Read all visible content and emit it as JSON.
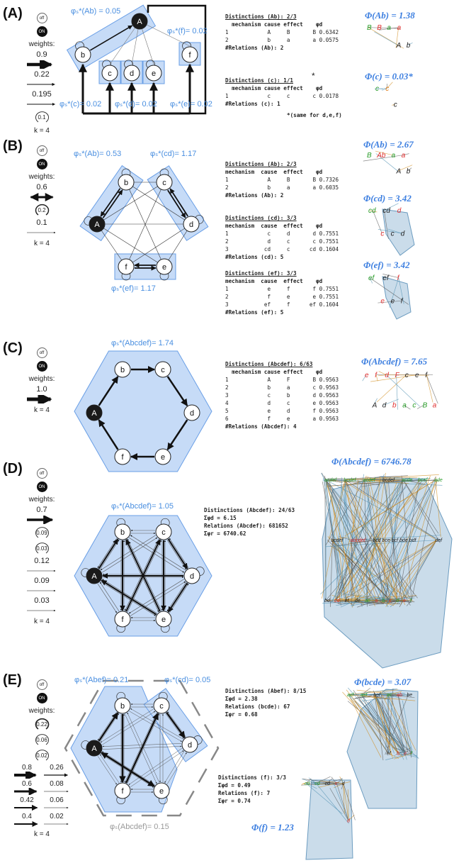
{
  "panels": [
    {
      "label": "(A)",
      "legend": {
        "off": "off",
        "on": "ON",
        "weights_label": "weights:",
        "items": [
          {
            "kind": "arrow",
            "labels": [
              "0.9"
            ]
          },
          {
            "kind": "arrow",
            "labels": [
              "0.22"
            ]
          },
          {
            "kind": "arrow",
            "labels": [
              "0.195"
            ]
          },
          {
            "kind": "loop",
            "labels": [
              "0.1"
            ]
          }
        ],
        "k": "k = 4"
      },
      "nodes": [
        "A",
        "b",
        "c",
        "d",
        "e",
        "f"
      ],
      "annotations": [
        "φₛ*(Ab) = 0.05",
        "φₛ*(f)= 0.02",
        "φₛ*(c)= 0.02",
        "φₛ*(d)= 0.02",
        "φₛ*(e)= 0.02"
      ],
      "tables": [
        {
          "title": "Distinctions (Ab): 2/3",
          "header": "  mechanism cause effect    φd",
          "rows": [
            [
              "1",
              "A",
              "B",
              "B",
              "0.6342"
            ],
            [
              "2",
              "b",
              "a",
              "a",
              "0.0575"
            ]
          ],
          "footer": "#Relations (Ab): 2"
        },
        {
          "title": "Distinctions (c): 1/1",
          "header": "  mechanism cause effect    φd",
          "rows": [
            [
              "1",
              "c",
              "c",
              "c",
              "0.0178"
            ]
          ],
          "footer": "#Relations (c): 1"
        }
      ],
      "star": "*",
      "note": "*(same for d,e,f)",
      "phi": [
        {
          "title": "Φ(Ab) = 1.38",
          "labels": [
            {
              "t": "B",
              "c": "#2a9d2a"
            },
            {
              "t": "B",
              "c": "#e03030"
            },
            {
              "t": "a",
              "c": "#2a9d2a"
            },
            {
              "t": "a",
              "c": "#e03030"
            },
            {
              "t": "A",
              "c": "#222"
            },
            {
              "t": "b",
              "c": "#222"
            }
          ]
        },
        {
          "title": "Φ(c) = 0.03*",
          "labels": [
            {
              "t": "c",
              "c": "#2a9d2a"
            },
            {
              "t": "c",
              "c": "#e08020"
            },
            {
              "t": "c",
              "c": "#222"
            }
          ]
        }
      ]
    },
    {
      "label": "(B)",
      "legend": {
        "off": "off",
        "on": "ON",
        "weights_label": "weights:",
        "items": [
          {
            "kind": "double-arrow",
            "labels": [
              "0.6"
            ]
          },
          {
            "kind": "loop",
            "labels": [
              "0.2"
            ]
          },
          {
            "kind": "arrow",
            "labels": [
              "0.1"
            ]
          }
        ],
        "k": "k = 4"
      },
      "nodes": [
        "A",
        "b",
        "c",
        "d",
        "e",
        "f"
      ],
      "annotations": [
        "φₛ*(Ab)= 0.53",
        "φₛ*(cd)= 1.17",
        "φₛ*(ef)= 1.17"
      ],
      "tables": [
        {
          "title": "Distinctions (Ab): 2/3",
          "header": "mechanism  cause  effect    φd",
          "rows": [
            [
              "1",
              "A",
              "B",
              "B",
              "0.7326"
            ],
            [
              "2",
              "b",
              "a",
              "a",
              "0.6035"
            ]
          ],
          "footer": "#Relations (Ab): 2"
        },
        {
          "title": "Distinctions (cd): 3/3",
          "header": "mechanism  cause  effect    φd",
          "rows": [
            [
              "1",
              "c",
              "d",
              "d",
              "0.7551"
            ],
            [
              "2",
              "d",
              "c",
              "c",
              "0.7551"
            ],
            [
              "3",
              "cd",
              "c",
              "cd",
              "0.1604"
            ]
          ],
          "footer": "#Relations (cd): 5"
        },
        {
          "title": "Distinctions (ef): 3/3",
          "header": "mechanism  cause  effect    φd",
          "rows": [
            [
              "1",
              "e",
              "f",
              "f",
              "0.7551"
            ],
            [
              "2",
              "f",
              "e",
              "e",
              "0.7551"
            ],
            [
              "3",
              "ef",
              "f",
              "ef",
              "0.1604"
            ]
          ],
          "footer": "#Relations (ef): 5"
        }
      ],
      "phi": [
        {
          "title": "Φ(Ab) = 2.67",
          "labels": [
            {
              "t": "B",
              "c": "#2a9d2a"
            },
            {
              "t": "Ab",
              "c": "#e03030"
            },
            {
              "t": "a",
              "c": "#2a9d2a"
            },
            {
              "t": "a",
              "c": "#e03030"
            },
            {
              "t": "A",
              "c": "#222"
            },
            {
              "t": "b",
              "c": "#222"
            }
          ]
        },
        {
          "title": "Φ(cd) = 3.42",
          "labels": [
            {
              "t": "cd",
              "c": "#2a9d2a"
            },
            {
              "t": "cd",
              "c": "#222"
            },
            {
              "t": "d",
              "c": "#e03030"
            },
            {
              "t": "c",
              "c": "#e03030"
            },
            {
              "t": "c",
              "c": "#222"
            },
            {
              "t": "d",
              "c": "#222"
            }
          ]
        },
        {
          "title": "Φ(ef) = 3.42",
          "labels": [
            {
              "t": "ef",
              "c": "#2a9d2a"
            },
            {
              "t": "ef",
              "c": "#222"
            },
            {
              "t": "f",
              "c": "#e03030"
            },
            {
              "t": "e",
              "c": "#e03030"
            },
            {
              "t": "e",
              "c": "#222"
            },
            {
              "t": "f",
              "c": "#222"
            }
          ]
        }
      ]
    },
    {
      "label": "(C)",
      "legend": {
        "off": "off",
        "on": "ON",
        "weights_label": "weights:",
        "items": [
          {
            "kind": "arrow",
            "labels": [
              "1.0"
            ]
          }
        ],
        "k": "k = 4"
      },
      "nodes": [
        "A",
        "b",
        "c",
        "d",
        "e",
        "f"
      ],
      "annotations": [
        "φₛ*(Abcdef)= 1.74"
      ],
      "tables": [
        {
          "title": "Distinctions (Abcdef): 6/63",
          "header": "  mechanism cause effect    φd",
          "rows": [
            [
              "1",
              "A",
              "F",
              "B",
              "0.9563"
            ],
            [
              "2",
              "b",
              "a",
              "c",
              "0.9563"
            ],
            [
              "3",
              "c",
              "b",
              "d",
              "0.9563"
            ],
            [
              "4",
              "d",
              "c",
              "e",
              "0.9563"
            ],
            [
              "5",
              "e",
              "d",
              "f",
              "0.9563"
            ],
            [
              "6",
              "f",
              "e",
              "a",
              "0.9563"
            ]
          ],
          "footer": "#Relations (Abcdef): 4"
        }
      ],
      "phi": [
        {
          "title": "Φ(Abcdef) = 7.65",
          "labels": [
            {
              "t": "e",
              "c": "#e03030"
            },
            {
              "t": "f",
              "c": "#e03030"
            },
            {
              "t": "d",
              "c": "#e03030"
            },
            {
              "t": "F",
              "c": "#e03030"
            },
            {
              "t": "c",
              "c": "#222"
            },
            {
              "t": "e",
              "c": "#222"
            },
            {
              "t": "f",
              "c": "#222"
            },
            {
              "t": "A",
              "c": "#222"
            },
            {
              "t": "d",
              "c": "#222"
            },
            {
              "t": "b",
              "c": "#e03030"
            },
            {
              "t": "a",
              "c": "#2a9d2a"
            },
            {
              "t": "c",
              "c": "#2a9d2a"
            },
            {
              "t": "B",
              "c": "#2a9d2a"
            },
            {
              "t": "a",
              "c": "#e03030"
            }
          ]
        }
      ]
    },
    {
      "label": "(D)",
      "legend": {
        "off": "off",
        "on": "ON",
        "weights_label": "weights:",
        "items": [
          {
            "kind": "arrow",
            "labels": [
              "0.7"
            ]
          },
          {
            "kind": "loop",
            "labels": [
              "0.09"
            ]
          },
          {
            "kind": "loop",
            "labels": [
              "0.03"
            ]
          },
          {
            "kind": "arrow",
            "labels": [
              "0.12"
            ]
          },
          {
            "kind": "arrow",
            "labels": [
              "0.09"
            ]
          },
          {
            "kind": "arrow",
            "labels": [
              "0.03"
            ]
          }
        ],
        "k": "k = 4"
      },
      "nodes": [
        "A",
        "b",
        "c",
        "d",
        "e",
        "f"
      ],
      "annotations": [
        "φₛ*(Abcdef)= 1.05"
      ],
      "summary": [
        "Distinctions (Abcdef): 24/63",
        "Σφd = 6.15",
        "Relations (Abcdef): 681652",
        "Σφr = 6740.62"
      ],
      "phi": [
        {
          "title": "Φ(Abcdef) = 6746.78",
          "labels": [
            {
              "t": "acdef",
              "c": "#2a9d2a"
            },
            {
              "t": "bcdef",
              "c": "#2a9d2a"
            },
            {
              "t": "acdef",
              "c": "#2a9d2a"
            },
            {
              "t": "bcdef",
              "c": "#222"
            },
            {
              "t": "acde",
              "c": "#2a9d2a"
            },
            {
              "t": "bcef",
              "c": "#2a9d2a"
            },
            {
              "t": "ade",
              "c": "#2a9d2a"
            },
            {
              "t": "bcdef",
              "c": "#222"
            },
            {
              "t": "abcdef",
              "c": "#e03030"
            },
            {
              "t": "bcd bce bcf bde bdf",
              "c": "#222"
            },
            {
              "t": "def",
              "c": "#222"
            },
            {
              "t": "bd",
              "c": "#222"
            },
            {
              "t": "cd",
              "c": "#e03030"
            },
            {
              "t": "ef",
              "c": "#222"
            },
            {
              "t": "de",
              "c": "#222"
            },
            {
              "t": "ae",
              "c": "#2a9d2a"
            },
            {
              "t": "a",
              "c": "#e03030"
            },
            {
              "t": "b",
              "c": "#2a9d2a"
            },
            {
              "t": "c",
              "c": "#e03030"
            },
            {
              "t": "d",
              "c": "#2a9d2a"
            },
            {
              "t": "e",
              "c": "#e03030"
            },
            {
              "t": "f",
              "c": "#2a9d2a"
            }
          ]
        }
      ]
    },
    {
      "label": "(E)",
      "legend": {
        "off": "off",
        "on": "ON",
        "weights_label": "weights:",
        "items": [
          {
            "kind": "loop",
            "labels": [
              "0.22"
            ]
          },
          {
            "kind": "loop",
            "labels": [
              "0.06"
            ]
          },
          {
            "kind": "loop",
            "labels": [
              "0.02"
            ]
          },
          {
            "kind": "arrow-pair",
            "labels": [
              "0.8",
              "0.26"
            ]
          },
          {
            "kind": "arrow-pair",
            "labels": [
              "0.6",
              "0.08"
            ]
          },
          {
            "kind": "arrow-pair",
            "labels": [
              "0.42",
              "0.06"
            ]
          },
          {
            "kind": "arrow-pair",
            "labels": [
              "0.4",
              "0.02"
            ]
          }
        ],
        "k": "k = 4"
      },
      "nodes": [
        "A",
        "b",
        "c",
        "d",
        "e",
        "f"
      ],
      "annotations": [
        "φₛ*(Abef)= 0.21",
        "φₛ*(cd)= 0.05",
        "φₛ(Abcdef)= 0.15"
      ],
      "summary": [
        "Distinctions (Abef): 8/15",
        "Σφd = 2.38",
        "Relations (bcde): 67",
        "Σφr = 0.68"
      ],
      "summary2": [
        "Distinctions (f): 3/3",
        "Σφd = 0.49",
        "Relations (f): 7",
        "Σφr = 0.74"
      ],
      "phi": [
        {
          "title": "Φ(bcde) = 3.07",
          "labels": [
            {
              "t": "acf",
              "c": "#2a9d2a"
            },
            {
              "t": "aef",
              "c": "#2a9d2a"
            },
            {
              "t": "bef",
              "c": "#222"
            },
            {
              "t": "ac",
              "c": "#2a9d2a"
            },
            {
              "t": "ab",
              "c": "#e03030"
            },
            {
              "t": "be",
              "c": "#222"
            },
            {
              "t": "ef",
              "c": "#222"
            },
            {
              "t": "b",
              "c": "#e03030"
            },
            {
              "t": "e",
              "c": "#e03030"
            },
            {
              "t": "f",
              "c": "#2a9d2a"
            }
          ]
        },
        {
          "title": "Φ(f) = 1.23",
          "labels": [
            {
              "t": "cd",
              "c": "#2a9d2a"
            },
            {
              "t": "cd",
              "c": "#2a9d2a"
            },
            {
              "t": "cd",
              "c": "#222"
            },
            {
              "t": "c",
              "c": "#e03030"
            },
            {
              "t": "d",
              "c": "#222"
            },
            {
              "t": "d",
              "c": "#e03030"
            }
          ]
        }
      ]
    }
  ]
}
